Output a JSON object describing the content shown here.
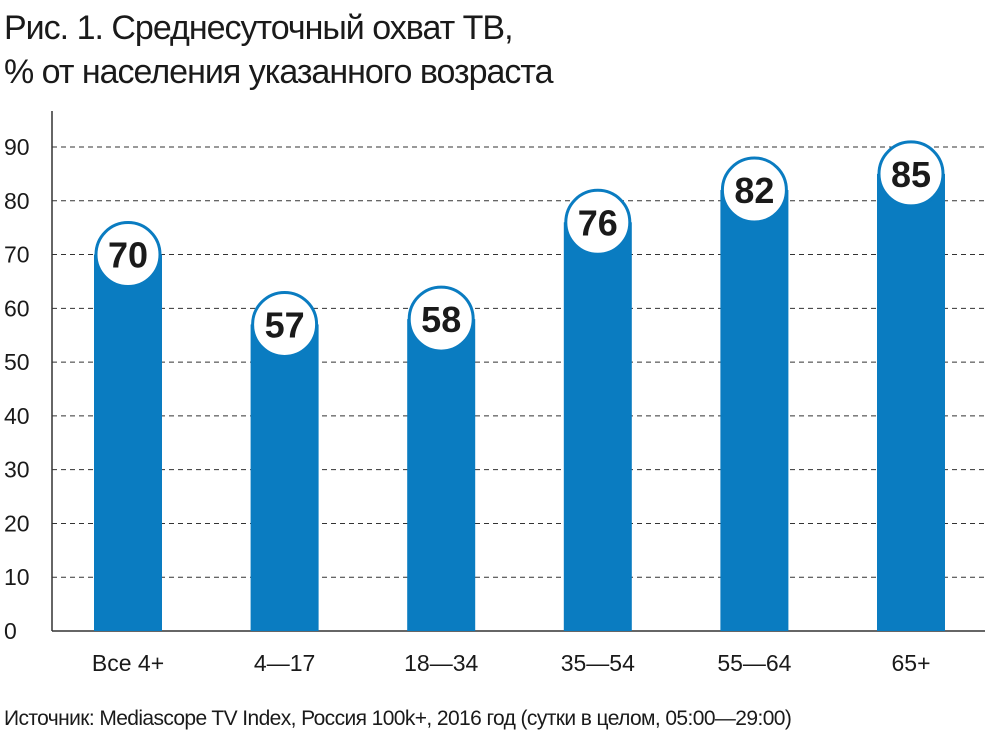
{
  "title": {
    "line1": "Рис. 1. Среднесуточный охват ТВ,",
    "line2": "% от населения указанного возраста"
  },
  "source": "Источник: Mediascope TV Index, Россия 100k+, 2016 год (сутки в целом, 05:00—29:00)",
  "colors": {
    "bar": "#0a7cc1",
    "label_circle_fill": "#ffffff",
    "label_circle_stroke": "#0a7cc1",
    "text": "#1a1a1a",
    "grid": "#333333"
  },
  "chart_data": {
    "type": "bar",
    "categories": [
      "Все 4+",
      "4—17",
      "18—34",
      "35—54",
      "55—64",
      "65+"
    ],
    "values": [
      70,
      57,
      58,
      76,
      82,
      85
    ],
    "ylim": [
      0,
      90
    ],
    "yticks": [
      0,
      10,
      20,
      30,
      40,
      50,
      60,
      70,
      80,
      90
    ],
    "grid": "dashed-horizontal",
    "data_labels": "circle-on-bar-top",
    "legend": "none",
    "xlabel": "",
    "ylabel": ""
  }
}
